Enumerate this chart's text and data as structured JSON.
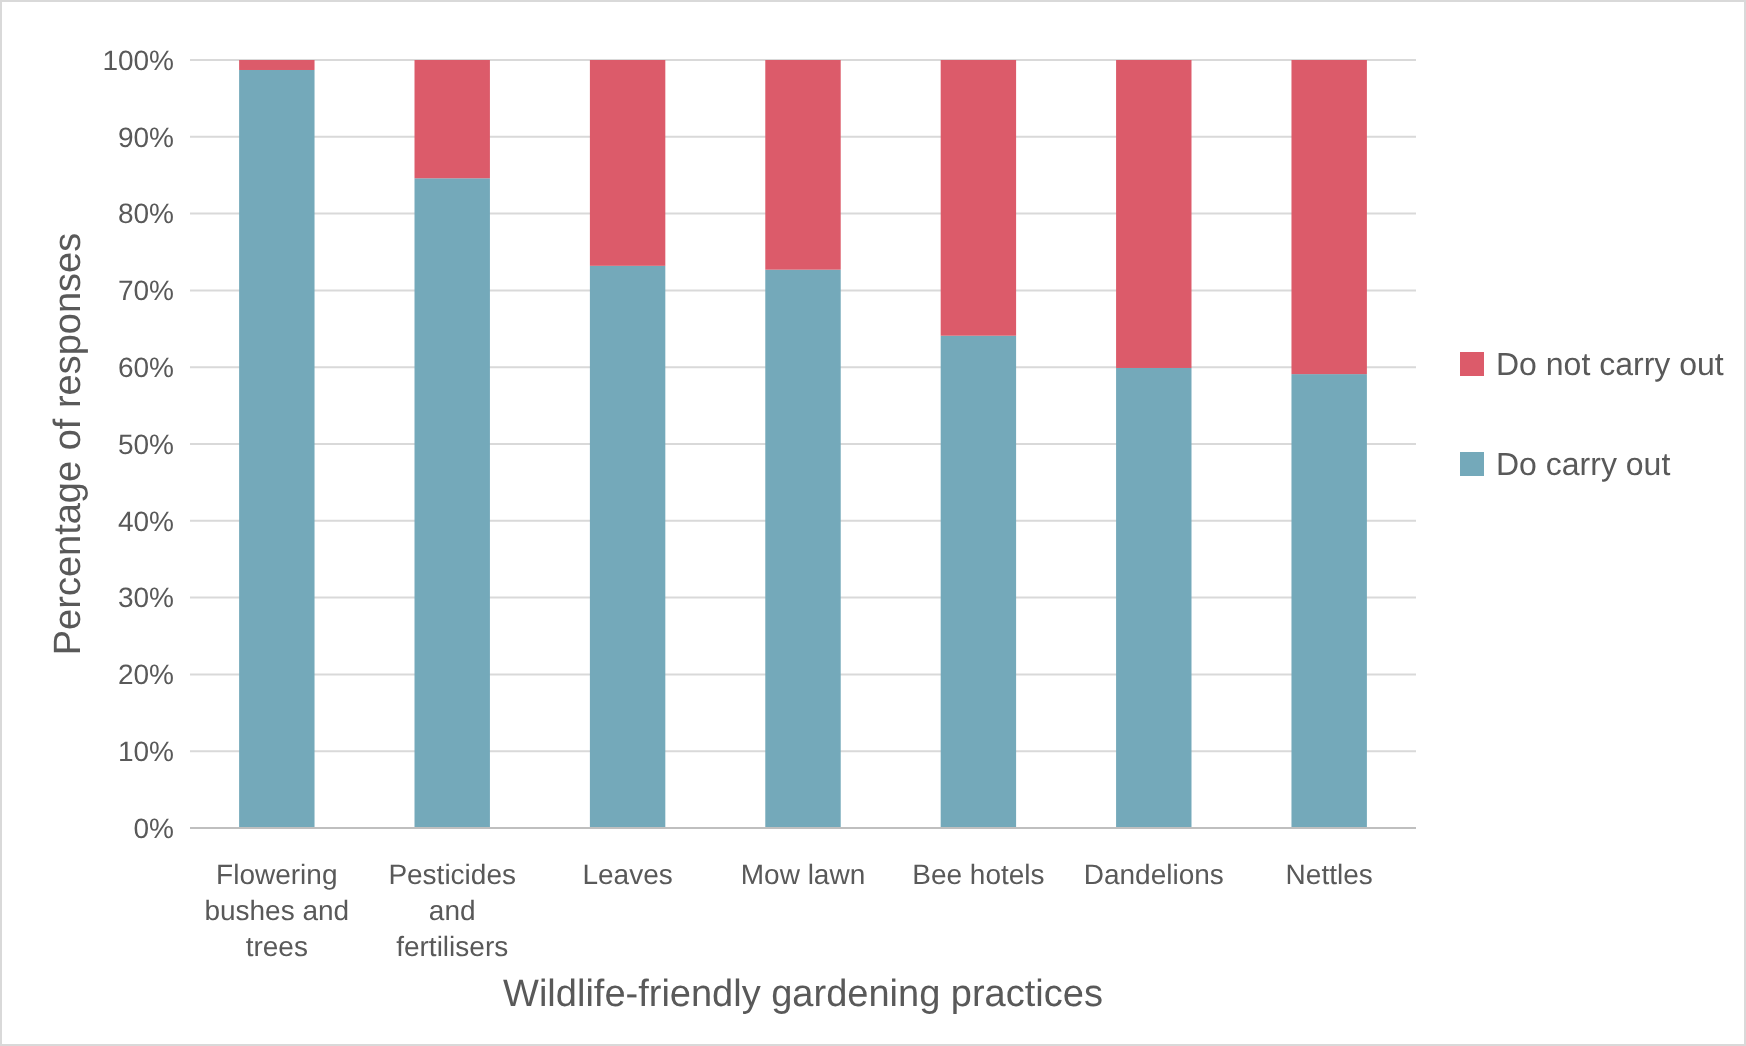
{
  "chart_data": {
    "type": "bar",
    "stacked": true,
    "xlabel": "Wildlife-friendly gardening practices",
    "ylabel": "Percentage of responses",
    "categories": [
      "Flowering bushes and trees",
      "Pesticides and fertilisers",
      "Leaves",
      "Mow lawn",
      "Bee hotels",
      "Dandelions",
      "Nettles"
    ],
    "series": [
      {
        "name": "Do carry out",
        "color": "#74a9ba",
        "values": [
          98.7,
          84.6,
          73.2,
          72.7,
          64.1,
          59.9,
          59.1
        ]
      },
      {
        "name": "Do not carry out",
        "color": "#dc5b6a",
        "values": [
          1.3,
          15.4,
          26.8,
          27.3,
          35.9,
          40.1,
          40.9
        ]
      }
    ],
    "ylim": [
      0,
      100
    ],
    "yticks": [
      {
        "value": 0,
        "label": "0%"
      },
      {
        "value": 10,
        "label": "10%"
      },
      {
        "value": 20,
        "label": "20%"
      },
      {
        "value": 30,
        "label": "30%"
      },
      {
        "value": 40,
        "label": "40%"
      },
      {
        "value": 50,
        "label": "50%"
      },
      {
        "value": 60,
        "label": "60%"
      },
      {
        "value": 70,
        "label": "70%"
      },
      {
        "value": 80,
        "label": "80%"
      },
      {
        "value": 90,
        "label": "90%"
      },
      {
        "value": 100,
        "label": "100%"
      }
    ],
    "grid": "y",
    "legend": "right"
  }
}
